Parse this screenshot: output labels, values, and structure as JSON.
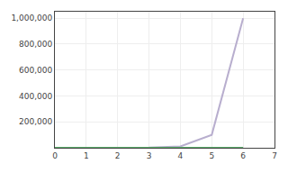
{
  "chart_data": {
    "type": "line",
    "x": [
      0,
      1,
      2,
      3,
      4,
      5,
      6
    ],
    "series": [
      {
        "color": "#b8aece",
        "values": [
          1,
          10,
          100,
          1000,
          10000,
          100000,
          1000000
        ]
      },
      {
        "color": "#5aab6a",
        "values": [
          0,
          1,
          2,
          3,
          4,
          5,
          6
        ]
      }
    ],
    "xlim": [
      0,
      7
    ],
    "ylim": [
      0,
      1050000
    ],
    "xticks": [
      0,
      1,
      2,
      3,
      4,
      5,
      6,
      7
    ],
    "yticks": [
      {
        "value": 200000,
        "label": "200,000"
      },
      {
        "value": 400000,
        "label": "400,000"
      },
      {
        "value": 600000,
        "label": "600,000"
      },
      {
        "value": 800000,
        "label": "800,000"
      },
      {
        "value": 1000000,
        "label": "1,000,000"
      }
    ],
    "grid": true
  }
}
